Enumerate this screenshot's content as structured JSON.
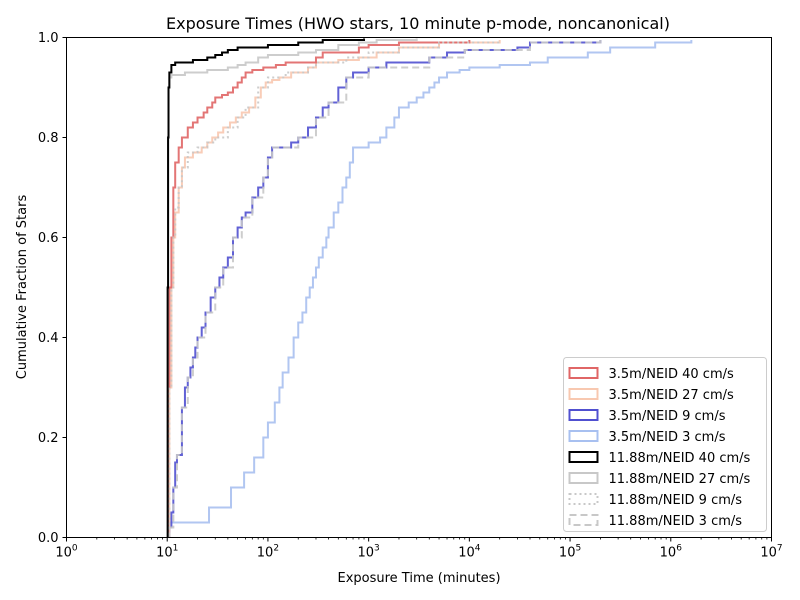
{
  "chart_data": {
    "type": "line",
    "title": "Exposure Times (HWO stars, 10 minute p-mode, noncanonical)",
    "xlabel": "Exposure Time (minutes)",
    "ylabel": "Cumulative Fraction of Stars",
    "xscale": "log",
    "xlim": [
      1,
      10000000
    ],
    "ylim": [
      0,
      1.0
    ],
    "x_ticks": [
      {
        "base": "10",
        "exp": "0",
        "value": 1
      },
      {
        "base": "10",
        "exp": "1",
        "value": 10
      },
      {
        "base": "10",
        "exp": "2",
        "value": 100
      },
      {
        "base": "10",
        "exp": "3",
        "value": 1000
      },
      {
        "base": "10",
        "exp": "4",
        "value": 10000
      },
      {
        "base": "10",
        "exp": "5",
        "value": 100000
      },
      {
        "base": "10",
        "exp": "6",
        "value": 1000000
      },
      {
        "base": "10",
        "exp": "7",
        "value": 10000000
      }
    ],
    "y_ticks": [
      {
        "label": "0.0",
        "value": 0.0
      },
      {
        "label": "0.2",
        "value": 0.2
      },
      {
        "label": "0.4",
        "value": 0.4
      },
      {
        "label": "0.6",
        "value": 0.6
      },
      {
        "label": "0.8",
        "value": 0.8
      },
      {
        "label": "1.0",
        "value": 1.0
      }
    ],
    "grid": false,
    "legend_position": "lower-right",
    "series": [
      {
        "name": "3.5m/NEID 40 cm/s",
        "color": "#e06666",
        "dash": "solid",
        "steps": [
          [
            10,
            0
          ],
          [
            10.2,
            0.3
          ],
          [
            10.5,
            0.5
          ],
          [
            11,
            0.6
          ],
          [
            11.5,
            0.7
          ],
          [
            12,
            0.75
          ],
          [
            13,
            0.78
          ],
          [
            14,
            0.8
          ],
          [
            16,
            0.82
          ],
          [
            18,
            0.83
          ],
          [
            20,
            0.84
          ],
          [
            23,
            0.85
          ],
          [
            25,
            0.86
          ],
          [
            28,
            0.87
          ],
          [
            30,
            0.88
          ],
          [
            35,
            0.885
          ],
          [
            40,
            0.89
          ],
          [
            45,
            0.9
          ],
          [
            50,
            0.91
          ],
          [
            55,
            0.92
          ],
          [
            60,
            0.93
          ],
          [
            70,
            0.935
          ],
          [
            90,
            0.94
          ],
          [
            120,
            0.945
          ],
          [
            150,
            0.95
          ],
          [
            250,
            0.95
          ],
          [
            300,
            0.96
          ],
          [
            350,
            0.97
          ],
          [
            600,
            0.97
          ],
          [
            800,
            0.98
          ],
          [
            1000,
            0.985
          ],
          [
            2000,
            0.99
          ],
          [
            10000,
            0.995
          ]
        ]
      },
      {
        "name": "3.5m/NEID 27 cm/s",
        "color": "#f8c8b0",
        "dash": "solid",
        "steps": [
          [
            10,
            0
          ],
          [
            10.5,
            0.3
          ],
          [
            11,
            0.5
          ],
          [
            11.5,
            0.6
          ],
          [
            12,
            0.65
          ],
          [
            13,
            0.7
          ],
          [
            14,
            0.74
          ],
          [
            15,
            0.76
          ],
          [
            18,
            0.77
          ],
          [
            22,
            0.78
          ],
          [
            25,
            0.79
          ],
          [
            28,
            0.8
          ],
          [
            32,
            0.81
          ],
          [
            36,
            0.82
          ],
          [
            42,
            0.83
          ],
          [
            48,
            0.84
          ],
          [
            55,
            0.85
          ],
          [
            65,
            0.86
          ],
          [
            75,
            0.88
          ],
          [
            85,
            0.9
          ],
          [
            95,
            0.91
          ],
          [
            110,
            0.915
          ],
          [
            130,
            0.92
          ],
          [
            170,
            0.93
          ],
          [
            250,
            0.94
          ],
          [
            300,
            0.95
          ],
          [
            500,
            0.955
          ],
          [
            800,
            0.96
          ],
          [
            1200,
            0.97
          ],
          [
            2000,
            0.98
          ],
          [
            5000,
            0.99
          ],
          [
            20000,
            0.995
          ]
        ]
      },
      {
        "name": "3.5m/NEID 9 cm/s",
        "color": "#5050d0",
        "dash": "solid",
        "steps": [
          [
            10,
            0
          ],
          [
            10.5,
            0.02
          ],
          [
            11,
            0.05
          ],
          [
            11.5,
            0.1
          ],
          [
            12,
            0.15
          ],
          [
            12.5,
            0.165
          ],
          [
            14,
            0.26
          ],
          [
            15,
            0.3
          ],
          [
            16,
            0.32
          ],
          [
            17,
            0.34
          ],
          [
            18,
            0.36
          ],
          [
            19,
            0.38
          ],
          [
            20,
            0.4
          ],
          [
            22,
            0.42
          ],
          [
            24,
            0.45
          ],
          [
            27,
            0.48
          ],
          [
            30,
            0.5
          ],
          [
            33,
            0.52
          ],
          [
            36,
            0.54
          ],
          [
            40,
            0.56
          ],
          [
            45,
            0.6
          ],
          [
            50,
            0.62
          ],
          [
            55,
            0.64
          ],
          [
            60,
            0.65
          ],
          [
            70,
            0.68
          ],
          [
            80,
            0.7
          ],
          [
            90,
            0.72
          ],
          [
            100,
            0.76
          ],
          [
            110,
            0.78
          ],
          [
            170,
            0.79
          ],
          [
            200,
            0.8
          ],
          [
            250,
            0.82
          ],
          [
            300,
            0.84
          ],
          [
            350,
            0.86
          ],
          [
            400,
            0.87
          ],
          [
            500,
            0.9
          ],
          [
            600,
            0.92
          ],
          [
            700,
            0.93
          ],
          [
            1000,
            0.94
          ],
          [
            1500,
            0.95
          ],
          [
            4000,
            0.96
          ],
          [
            6000,
            0.97
          ],
          [
            9000,
            0.975
          ],
          [
            30000,
            0.98
          ],
          [
            40000,
            0.99
          ],
          [
            200000,
            0.995
          ]
        ]
      },
      {
        "name": "3.5m/NEID 3 cm/s",
        "color": "#a8c0f0",
        "dash": "solid",
        "steps": [
          [
            10,
            0
          ],
          [
            10.5,
            0.03
          ],
          [
            26,
            0.06
          ],
          [
            43,
            0.1
          ],
          [
            58,
            0.13
          ],
          [
            73,
            0.16
          ],
          [
            90,
            0.2
          ],
          [
            100,
            0.23
          ],
          [
            117,
            0.27
          ],
          [
            130,
            0.3
          ],
          [
            140,
            0.33
          ],
          [
            160,
            0.36
          ],
          [
            180,
            0.4
          ],
          [
            200,
            0.43
          ],
          [
            220,
            0.45
          ],
          [
            240,
            0.48
          ],
          [
            260,
            0.5
          ],
          [
            280,
            0.52
          ],
          [
            300,
            0.54
          ],
          [
            320,
            0.56
          ],
          [
            350,
            0.58
          ],
          [
            380,
            0.6
          ],
          [
            400,
            0.62
          ],
          [
            450,
            0.65
          ],
          [
            500,
            0.67
          ],
          [
            550,
            0.7
          ],
          [
            600,
            0.72
          ],
          [
            650,
            0.75
          ],
          [
            700,
            0.78
          ],
          [
            1000,
            0.79
          ],
          [
            1300,
            0.8
          ],
          [
            1500,
            0.82
          ],
          [
            1800,
            0.84
          ],
          [
            2000,
            0.86
          ],
          [
            2500,
            0.87
          ],
          [
            3000,
            0.88
          ],
          [
            3500,
            0.89
          ],
          [
            4000,
            0.9
          ],
          [
            4500,
            0.91
          ],
          [
            5000,
            0.92
          ],
          [
            6000,
            0.93
          ],
          [
            8000,
            0.935
          ],
          [
            10000,
            0.94
          ],
          [
            20000,
            0.945
          ],
          [
            40000,
            0.95
          ],
          [
            60000,
            0.96
          ],
          [
            150000,
            0.97
          ],
          [
            250000,
            0.98
          ],
          [
            700000,
            0.99
          ],
          [
            1600000,
            0.995
          ]
        ]
      },
      {
        "name": "11.88m/NEID 40 cm/s",
        "color": "#000000",
        "dash": "solid",
        "steps": [
          [
            10,
            0
          ],
          [
            10.1,
            0.5
          ],
          [
            10.2,
            0.8
          ],
          [
            10.3,
            0.9
          ],
          [
            10.5,
            0.93
          ],
          [
            11,
            0.945
          ],
          [
            12,
            0.95
          ],
          [
            18,
            0.955
          ],
          [
            25,
            0.96
          ],
          [
            30,
            0.965
          ],
          [
            35,
            0.97
          ],
          [
            40,
            0.975
          ],
          [
            50,
            0.98
          ],
          [
            100,
            0.985
          ],
          [
            200,
            0.99
          ],
          [
            350,
            0.995
          ],
          [
            900,
            0.998
          ]
        ]
      },
      {
        "name": "11.88m/NEID 27 cm/s",
        "color": "#c8c8c8",
        "dash": "solid",
        "steps": [
          [
            10,
            0
          ],
          [
            10.1,
            0.5
          ],
          [
            10.2,
            0.8
          ],
          [
            10.3,
            0.9
          ],
          [
            10.5,
            0.92
          ],
          [
            11,
            0.925
          ],
          [
            15,
            0.93
          ],
          [
            25,
            0.935
          ],
          [
            40,
            0.94
          ],
          [
            50,
            0.945
          ],
          [
            60,
            0.95
          ],
          [
            80,
            0.96
          ],
          [
            100,
            0.965
          ],
          [
            200,
            0.97
          ],
          [
            300,
            0.975
          ],
          [
            500,
            0.985
          ],
          [
            800,
            0.99
          ],
          [
            1200,
            0.995
          ],
          [
            3000,
            0.998
          ]
        ]
      },
      {
        "name": "11.88m/NEID 9 cm/s",
        "color": "#c8c8c8",
        "dash": "dotted",
        "steps": [
          [
            10,
            0
          ],
          [
            10.5,
            0.3
          ],
          [
            11,
            0.5
          ],
          [
            11.5,
            0.6
          ],
          [
            12,
            0.66
          ],
          [
            13,
            0.7
          ],
          [
            14,
            0.74
          ],
          [
            16,
            0.77
          ],
          [
            20,
            0.78
          ],
          [
            25,
            0.79
          ],
          [
            30,
            0.8
          ],
          [
            40,
            0.82
          ],
          [
            50,
            0.84
          ],
          [
            60,
            0.86
          ],
          [
            80,
            0.9
          ],
          [
            100,
            0.92
          ],
          [
            150,
            0.93
          ],
          [
            250,
            0.94
          ],
          [
            300,
            0.95
          ],
          [
            600,
            0.96
          ],
          [
            1000,
            0.97
          ],
          [
            2000,
            0.98
          ],
          [
            5000,
            0.99
          ],
          [
            20000,
            0.995
          ]
        ]
      },
      {
        "name": "11.88m/NEID 3 cm/s",
        "color": "#c8c8c8",
        "dash": "dashed",
        "steps": [
          [
            10,
            0
          ],
          [
            10.5,
            0.02
          ],
          [
            11.5,
            0.1
          ],
          [
            12.5,
            0.165
          ],
          [
            14,
            0.26
          ],
          [
            16,
            0.32
          ],
          [
            18,
            0.36
          ],
          [
            20,
            0.4
          ],
          [
            24,
            0.45
          ],
          [
            30,
            0.5
          ],
          [
            36,
            0.54
          ],
          [
            45,
            0.6
          ],
          [
            55,
            0.64
          ],
          [
            70,
            0.68
          ],
          [
            90,
            0.72
          ],
          [
            100,
            0.76
          ],
          [
            110,
            0.78
          ],
          [
            200,
            0.8
          ],
          [
            300,
            0.84
          ],
          [
            400,
            0.87
          ],
          [
            600,
            0.92
          ],
          [
            1000,
            0.94
          ],
          [
            4000,
            0.96
          ],
          [
            9000,
            0.975
          ],
          [
            40000,
            0.99
          ],
          [
            200000,
            0.995
          ]
        ]
      }
    ]
  }
}
